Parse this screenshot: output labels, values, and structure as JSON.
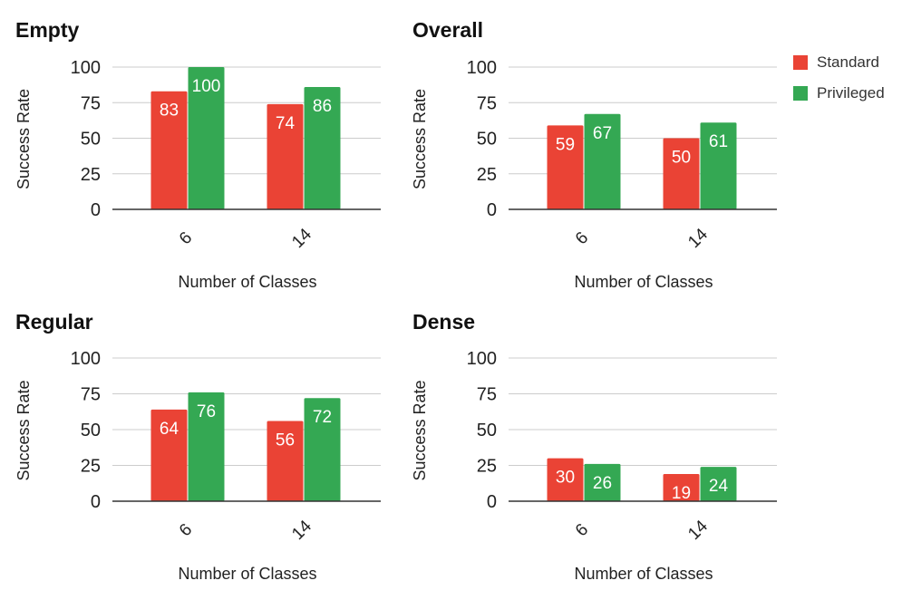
{
  "colors": {
    "standard": "#EA4335",
    "privileged": "#34A853",
    "grid": "#cccccc",
    "axis": "#333333"
  },
  "legend": [
    "Standard",
    "Privileged"
  ],
  "chart_data": [
    {
      "type": "bar",
      "title": "Empty",
      "xlabel": "Number of Classes",
      "ylabel": "Success Rate",
      "categories": [
        "6",
        "14"
      ],
      "ylim": [
        0,
        100
      ],
      "yticks": [
        0,
        25,
        50,
        75,
        100
      ],
      "grid": true,
      "series": [
        {
          "name": "Standard",
          "values": [
            83,
            74
          ]
        },
        {
          "name": "Privileged",
          "values": [
            100,
            86
          ]
        }
      ]
    },
    {
      "type": "bar",
      "title": "Overall",
      "xlabel": "Number of Classes",
      "ylabel": "Success Rate",
      "categories": [
        "6",
        "14"
      ],
      "ylim": [
        0,
        100
      ],
      "yticks": [
        0,
        25,
        50,
        75,
        100
      ],
      "grid": true,
      "series": [
        {
          "name": "Standard",
          "values": [
            59,
            50
          ]
        },
        {
          "name": "Privileged",
          "values": [
            67,
            61
          ]
        }
      ]
    },
    {
      "type": "bar",
      "title": "Regular",
      "xlabel": "Number of Classes",
      "ylabel": "Success Rate",
      "categories": [
        "6",
        "14"
      ],
      "ylim": [
        0,
        100
      ],
      "yticks": [
        0,
        25,
        50,
        75,
        100
      ],
      "grid": true,
      "series": [
        {
          "name": "Standard",
          "values": [
            64,
            56
          ]
        },
        {
          "name": "Privileged",
          "values": [
            76,
            72
          ]
        }
      ]
    },
    {
      "type": "bar",
      "title": "Dense",
      "xlabel": "Number of Classes",
      "ylabel": "Success Rate",
      "categories": [
        "6",
        "14"
      ],
      "ylim": [
        0,
        100
      ],
      "yticks": [
        0,
        25,
        50,
        75,
        100
      ],
      "grid": true,
      "series": [
        {
          "name": "Standard",
          "values": [
            30,
            19
          ]
        },
        {
          "name": "Privileged",
          "values": [
            26,
            24
          ]
        }
      ]
    }
  ]
}
